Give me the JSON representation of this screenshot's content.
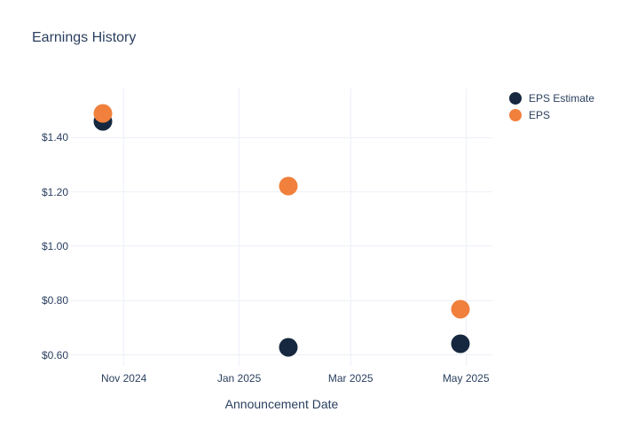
{
  "page": {
    "title": "Earnings History"
  },
  "colors": {
    "background": "#ffffff",
    "font": "#2a3f5f",
    "gridline": "#edf0f8",
    "eps_estimate": "#16283f",
    "eps": "#f0803c"
  },
  "chart_data": {
    "type": "scatter",
    "title": "Earnings History",
    "xlabel": "Announcement Date",
    "ylabel": "",
    "grid": true,
    "legend_position": "top-right",
    "xaxis": {
      "domain": [
        "2024-10-04",
        "2025-05-15"
      ],
      "ticks": [
        {
          "date": "2024-11-01",
          "label": "Nov 2024"
        },
        {
          "date": "2025-01-01",
          "label": "Jan 2025"
        },
        {
          "date": "2025-03-01",
          "label": "Mar 2025"
        },
        {
          "date": "2025-05-01",
          "label": "May 2025"
        }
      ]
    },
    "yaxis": {
      "domain": [
        0.56,
        1.58
      ],
      "ticks": [
        {
          "value": 1.4,
          "label": "$1.40"
        },
        {
          "value": 1.2,
          "label": "$1.20"
        },
        {
          "value": 1.0,
          "label": "$1.00"
        },
        {
          "value": 0.8,
          "label": "$0.80"
        },
        {
          "value": 0.6,
          "label": "$0.60"
        }
      ]
    },
    "series": [
      {
        "name": "EPS Estimate",
        "color": "#16283f",
        "points": [
          {
            "date": "2024-10-21",
            "value": 1.46
          },
          {
            "date": "2025-01-27",
            "value": 0.63
          },
          {
            "date": "2025-04-28",
            "value": 0.64
          }
        ]
      },
      {
        "name": "EPS",
        "color": "#f0803c",
        "points": [
          {
            "date": "2024-10-21",
            "value": 1.49
          },
          {
            "date": "2025-01-27",
            "value": 1.22
          },
          {
            "date": "2025-04-28",
            "value": 0.77
          }
        ]
      }
    ]
  }
}
